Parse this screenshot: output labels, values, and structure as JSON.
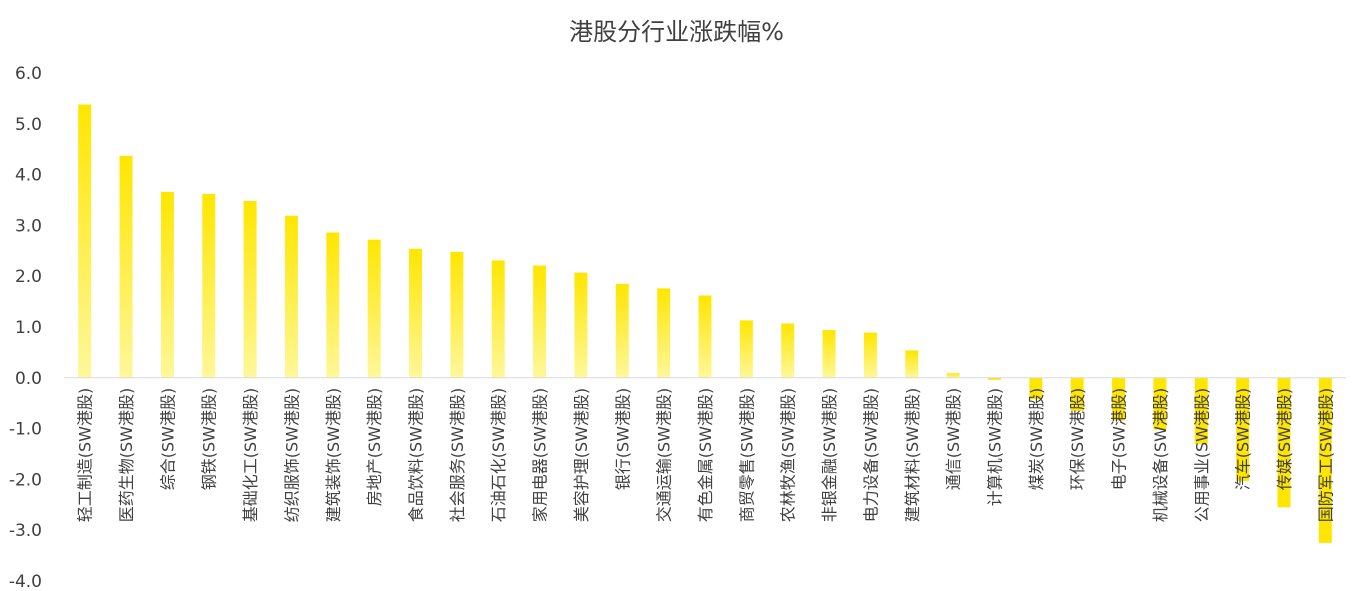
{
  "chart_data": {
    "type": "bar",
    "title": "港股分行业涨跌幅%",
    "xlabel": "",
    "ylabel": "",
    "ylim": [
      -4.0,
      6.0
    ],
    "yticks": [
      "6.0",
      "5.0",
      "4.0",
      "3.0",
      "2.0",
      "1.0",
      "0.0",
      "-1.0",
      "-2.0",
      "-3.0",
      "-4.0"
    ],
    "grid": false,
    "bar_color": "#FFE600",
    "bar_color_light": "#FFF79A",
    "categories": [
      "轻工制造(SW港股)",
      "医药生物(SW港股)",
      "综合(SW港股)",
      "钢铁(SW港股)",
      "基础化工(SW港股)",
      "纺织服饰(SW港股)",
      "建筑装饰(SW港股)",
      "房地产(SW港股)",
      "食品饮料(SW港股)",
      "社会服务(SW港股)",
      "石油石化(SW港股)",
      "家用电器(SW港股)",
      "美容护理(SW港股)",
      "银行(SW港股)",
      "交通运输(SW港股)",
      "有色金属(SW港股)",
      "商贸零售(SW港股)",
      "农林牧渔(SW港股)",
      "非银金融(SW港股)",
      "电力设备(SW港股)",
      "建筑材料(SW港股)",
      "通信(SW港股)",
      "计算机(SW港股)",
      "煤炭(SW港股)",
      "环保(SW港股)",
      "电子(SW港股)",
      "机械设备(SW港股)",
      "公用事业(SW港股)",
      "汽车(SW港股)",
      "传媒(SW港股)",
      "国防军工(SW港股)"
    ],
    "values": [
      5.38,
      4.37,
      3.66,
      3.62,
      3.48,
      3.19,
      2.86,
      2.72,
      2.54,
      2.48,
      2.31,
      2.21,
      2.07,
      1.85,
      1.76,
      1.62,
      1.13,
      1.07,
      0.94,
      0.89,
      0.54,
      0.09,
      -0.04,
      -0.42,
      -0.65,
      -0.84,
      -1.02,
      -1.3,
      -2.03,
      -2.55,
      -3.25
    ]
  }
}
